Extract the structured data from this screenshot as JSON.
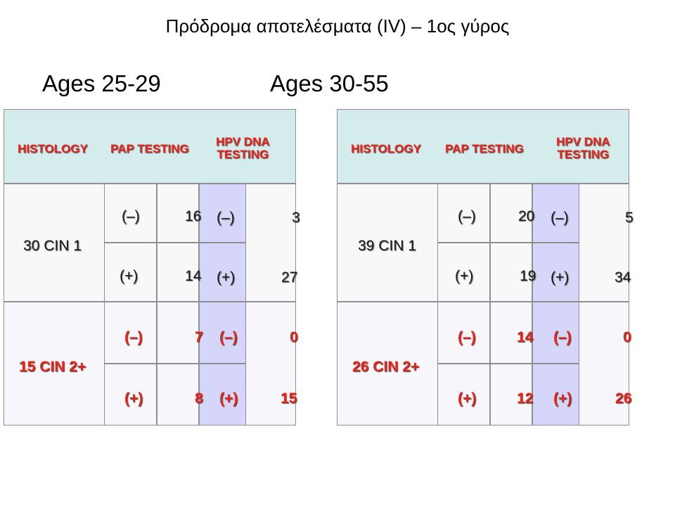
{
  "title": "Πρόδρομα αποτελέσματα (IV) – 1ος γύρος",
  "headers": {
    "histology": "HISTOLOGY",
    "pap": "PAP TESTING",
    "hpv_line1": "HPV DNA",
    "hpv_line2": "TESTING"
  },
  "neg": "(–)",
  "pos": "(+)",
  "panels": [
    {
      "age": "Ages 25-29",
      "cin1": {
        "label": "30 CIN 1",
        "pap_neg": "16",
        "pap_pos": "14",
        "hpv_neg": "3",
        "hpv_pos": "27"
      },
      "cin2": {
        "label": "15 CIN 2+",
        "pap_neg": "7",
        "pap_pos": "8",
        "hpv_neg": "0",
        "hpv_pos": "15"
      }
    },
    {
      "age": "Ages 30-55",
      "cin1": {
        "label": "39 CIN 1",
        "pap_neg": "20",
        "pap_pos": "19",
        "hpv_neg": "5",
        "hpv_pos": "34"
      },
      "cin2": {
        "label": "26 CIN 2+",
        "pap_neg": "14",
        "pap_pos": "12",
        "hpv_neg": "0",
        "hpv_pos": "26"
      }
    }
  ]
}
